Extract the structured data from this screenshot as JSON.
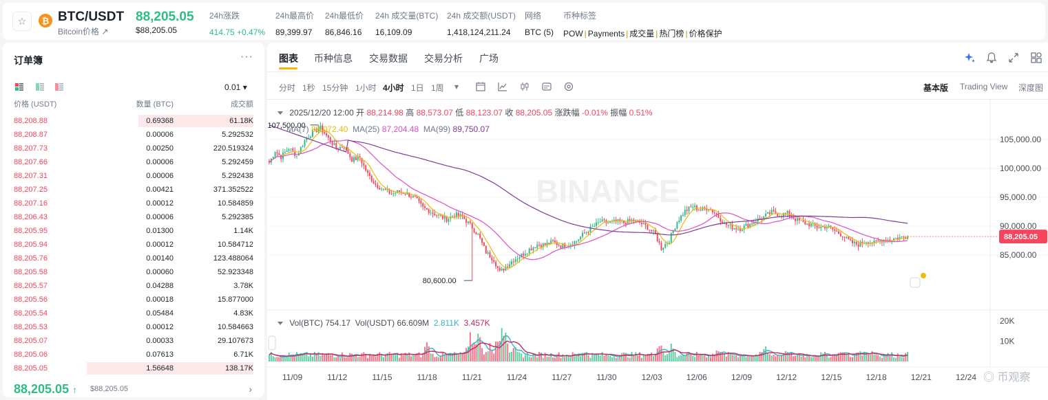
{
  "ticker": {
    "pair": "BTC/USDT",
    "pair_sub": "Bitcoin价格 ↗",
    "coin_glyph": "₿",
    "last_price": "88,205.05",
    "last_price_sub": "$88,205.05",
    "stats": [
      {
        "label": "24h涨跌",
        "value": "414.75 +0.47%",
        "style": "green"
      },
      {
        "label": "24h最高价",
        "value": "89,399.97",
        "style": ""
      },
      {
        "label": "24h最低价",
        "value": "86,846.16",
        "style": ""
      },
      {
        "label": "24h 成交量(BTC)",
        "value": "16,109.09",
        "style": ""
      },
      {
        "label": "24h 成交额(USDT)",
        "value": "1,418,124,211.24",
        "style": ""
      },
      {
        "label": "网络",
        "value": "BTC (5)",
        "style": ""
      }
    ],
    "tags_label": "币种标签",
    "tags": [
      "POW",
      "Payments",
      "成交量",
      "热门榜",
      "价格保护"
    ]
  },
  "orderbook": {
    "title": "订单簿",
    "more": "···",
    "tick_size": "0.01 ▾",
    "headers": {
      "price": "价格 (USDT)",
      "qty": "数量 (BTC)",
      "total": "成交额"
    },
    "asks": [
      {
        "price": "88,208.88",
        "qty": "0.69368",
        "total": "61.18K",
        "depth": 0.69
      },
      {
        "price": "88,208.87",
        "qty": "0.00006",
        "total": "5.292532",
        "depth": 0.0
      },
      {
        "price": "88,207.73",
        "qty": "0.00250",
        "total": "220.519324",
        "depth": 0.0
      },
      {
        "price": "88,207.66",
        "qty": "0.00006",
        "total": "5.292459",
        "depth": 0.0
      },
      {
        "price": "88,207.31",
        "qty": "0.00006",
        "total": "5.292438",
        "depth": 0.0
      },
      {
        "price": "88,207.25",
        "qty": "0.00421",
        "total": "371.352522",
        "depth": 0.0
      },
      {
        "price": "88,207.16",
        "qty": "0.00012",
        "total": "10.584859",
        "depth": 0.0
      },
      {
        "price": "88,206.43",
        "qty": "0.00006",
        "total": "5.292385",
        "depth": 0.0
      },
      {
        "price": "88,205.95",
        "qty": "0.01300",
        "total": "1.14K",
        "depth": 0.0
      },
      {
        "price": "88,205.94",
        "qty": "0.00012",
        "total": "10.584712",
        "depth": 0.0
      },
      {
        "price": "88,205.76",
        "qty": "0.00140",
        "total": "123.488064",
        "depth": 0.0
      },
      {
        "price": "88,205.58",
        "qty": "0.00060",
        "total": "52.923348",
        "depth": 0.0
      },
      {
        "price": "88,205.57",
        "qty": "0.04288",
        "total": "3.78K",
        "depth": 0.0
      },
      {
        "price": "88,205.56",
        "qty": "0.00018",
        "total": "15.877000",
        "depth": 0.0
      },
      {
        "price": "88,205.54",
        "qty": "0.05484",
        "total": "4.83K",
        "depth": 0.0
      },
      {
        "price": "88,205.53",
        "qty": "0.00012",
        "total": "10.584663",
        "depth": 0.0
      },
      {
        "price": "88,205.07",
        "qty": "0.00033",
        "total": "29.107673",
        "depth": 0.0
      },
      {
        "price": "88,205.06",
        "qty": "0.07613",
        "total": "6.71K",
        "depth": 0.0
      },
      {
        "price": "88,205.05",
        "qty": "1.56648",
        "total": "138.17K",
        "depth": 1.0
      }
    ],
    "mid_price": "88,205.05",
    "mid_arrow": "↑",
    "mid_sub": "$88,205.05",
    "mid_chevron": "›"
  },
  "chart_panel": {
    "tabs": [
      "图表",
      "币种信息",
      "交易数据",
      "交易分析",
      "广场"
    ],
    "active_tab": "图表",
    "intervals": [
      "分时",
      "1秒",
      "15分钟",
      "1小时",
      "4小时",
      "1日",
      "1周"
    ],
    "active_interval": "4小时",
    "interval_more": "▾",
    "view_options": [
      "基本版",
      "Trading View",
      "深度图"
    ],
    "active_view": "基本版",
    "icons": {
      "ai": "ai-sparkle-icon",
      "bell": "bell-icon",
      "expand": "expand-icon",
      "layout": "layout-grid-icon"
    },
    "ohlc": {
      "date": "2025/12/20 12:00",
      "open_label": "开",
      "open": "88,214.98",
      "high_label": "高",
      "high": "88,573.07",
      "low_label": "低",
      "low": "88,123.07",
      "close_label": "收",
      "close": "88,205.05",
      "change_label": "涨跌幅",
      "change": "-0.01%",
      "amp_label": "振幅",
      "amp": "0.51%"
    },
    "ma": [
      {
        "name": "MA(7)",
        "value": "88,072.40",
        "color": "#f0b90b"
      },
      {
        "name": "MA(25)",
        "value": "87,204.48",
        "color": "#e04fc4"
      },
      {
        "name": "MA(99)",
        "value": "89,750.07",
        "color": "#7d3c98"
      }
    ],
    "vol": {
      "btc_label": "Vol(BTC)",
      "btc": "754.17",
      "usdt_label": "Vol(USDT)",
      "usdt": "66.609M",
      "ma5": "2.811K",
      "ma10": "3.457K"
    },
    "watermark": "BINANCE",
    "source_mark": "币观察",
    "colors": {
      "up": "#2ebd85",
      "down": "#f6465d"
    }
  },
  "chart_data": {
    "type": "candlestick",
    "yticks": [
      "105,000.00",
      "100,000.00",
      "95,000.00",
      "90,000.00",
      "85,000.00"
    ],
    "ytick_values": [
      105000,
      100000,
      95000,
      90000,
      85000
    ],
    "ylim": [
      78000,
      112000
    ],
    "xticks": [
      "11/09",
      "11/12",
      "11/15",
      "11/18",
      "11/21",
      "11/24",
      "11/27",
      "11/30",
      "12/03",
      "12/06",
      "12/09",
      "12/12",
      "12/15",
      "12/18",
      "12/21",
      "12/24"
    ],
    "high_label": "107,500.00",
    "high_value": 107500,
    "low_label": "80,600.00",
    "low_value": 80600,
    "current_price_label": "88,205.05",
    "current_price": 88205.05,
    "vol_yticks": [
      "20K",
      "10K"
    ],
    "vol_ytick_values": [
      20000,
      10000
    ],
    "anchors": [
      [
        0,
        101000
      ],
      [
        3,
        103000
      ],
      [
        6,
        102000
      ],
      [
        10,
        103500
      ],
      [
        14,
        102200
      ],
      [
        18,
        104800
      ],
      [
        22,
        106200
      ],
      [
        26,
        107000
      ],
      [
        30,
        105200
      ],
      [
        34,
        103500
      ],
      [
        38,
        103800
      ],
      [
        42,
        101500
      ],
      [
        46,
        101800
      ],
      [
        50,
        99000
      ],
      [
        54,
        97200
      ],
      [
        58,
        96300
      ],
      [
        62,
        95600
      ],
      [
        66,
        96000
      ],
      [
        70,
        95600
      ],
      [
        74,
        94800
      ],
      [
        78,
        93200
      ],
      [
        82,
        92500
      ],
      [
        86,
        91800
      ],
      [
        90,
        91200
      ],
      [
        94,
        92000
      ],
      [
        98,
        91600
      ],
      [
        102,
        90200
      ],
      [
        106,
        88500
      ],
      [
        110,
        85500
      ],
      [
        114,
        84200
      ],
      [
        117,
        82000
      ],
      [
        120,
        83000
      ],
      [
        124,
        84200
      ],
      [
        128,
        85000
      ],
      [
        132,
        86000
      ],
      [
        136,
        86800
      ],
      [
        140,
        86800
      ],
      [
        144,
        87300
      ],
      [
        148,
        86600
      ],
      [
        152,
        86800
      ],
      [
        156,
        87500
      ],
      [
        160,
        88800
      ],
      [
        164,
        89800
      ],
      [
        168,
        90800
      ],
      [
        172,
        90600
      ],
      [
        176,
        90800
      ],
      [
        180,
        90600
      ],
      [
        184,
        91000
      ],
      [
        188,
        90600
      ],
      [
        192,
        89800
      ],
      [
        196,
        88500
      ],
      [
        199,
        86200
      ],
      [
        203,
        87600
      ],
      [
        207,
        90800
      ],
      [
        211,
        92600
      ],
      [
        215,
        93400
      ],
      [
        219,
        92800
      ],
      [
        223,
        93200
      ],
      [
        227,
        92000
      ],
      [
        231,
        90400
      ],
      [
        235,
        89800
      ],
      [
        239,
        89600
      ],
      [
        243,
        90200
      ],
      [
        247,
        91000
      ],
      [
        251,
        91600
      ],
      [
        255,
        92400
      ],
      [
        259,
        92000
      ],
      [
        263,
        92200
      ],
      [
        267,
        91200
      ],
      [
        271,
        90600
      ],
      [
        275,
        90200
      ],
      [
        279,
        89800
      ],
      [
        283,
        90000
      ],
      [
        287,
        89200
      ],
      [
        291,
        88400
      ],
      [
        295,
        87200
      ],
      [
        299,
        86800
      ],
      [
        303,
        87400
      ],
      [
        307,
        87100
      ],
      [
        311,
        87600
      ],
      [
        315,
        87700
      ],
      [
        319,
        88000
      ],
      [
        324,
        88205
      ]
    ],
    "candle_count": 325,
    "volume_spikes": [
      [
        80,
        9000
      ],
      [
        102,
        13000
      ],
      [
        106,
        16000
      ],
      [
        112,
        8000
      ],
      [
        116,
        11000
      ],
      [
        118,
        16000
      ],
      [
        120,
        12000
      ],
      [
        124,
        8000
      ],
      [
        160,
        6000
      ],
      [
        198,
        9000
      ],
      [
        204,
        8500
      ],
      [
        228,
        6500
      ],
      [
        252,
        7500
      ],
      [
        262,
        5500
      ],
      [
        290,
        6000
      ],
      [
        300,
        5500
      ],
      [
        306,
        5000
      ]
    ]
  }
}
